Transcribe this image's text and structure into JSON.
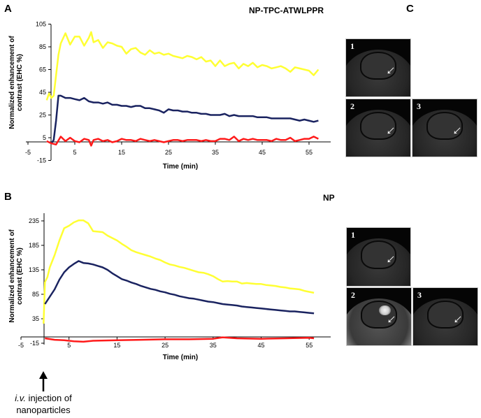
{
  "panels": {
    "a_label": "A",
    "b_label": "B",
    "c_label": "C",
    "a_condition": "NP-TPC-ATWLPPR",
    "b_condition": "NP"
  },
  "annotation": {
    "iv": "i.v.",
    "text1": " injection of",
    "text2": "nanoparticles"
  },
  "series_colors": {
    "yellow": "#ffff33",
    "navy": "#1a2360",
    "red": "#ff1a1a"
  },
  "mri_images": {
    "top": [
      "1",
      "2",
      "3"
    ],
    "bottom": [
      "1",
      "2",
      "3"
    ]
  },
  "chart_data": [
    {
      "type": "line",
      "title": "NP-TPC-ATWLPPR",
      "xlabel": "Time (min)",
      "ylabel": [
        "Normalized enhancement of",
        "contrast (EHC %)"
      ],
      "xticks": [
        "-5",
        "5",
        "15",
        "25",
        "35",
        "45",
        "55"
      ],
      "yticks": [
        "105",
        "85",
        "65",
        "45",
        "25",
        "5",
        "-15"
      ],
      "xlim": [
        -5,
        60
      ],
      "ylim": [
        -15,
        105
      ],
      "grid": false,
      "series": [
        {
          "color": "#ffff33",
          "x": [
            -1,
            -0.5,
            0,
            0.5,
            1,
            1.5,
            2,
            3,
            4,
            5,
            6,
            7,
            8,
            8.5,
            9,
            10,
            11,
            12,
            13,
            14,
            15,
            16,
            17,
            18,
            19,
            20,
            21,
            22,
            23,
            24,
            25,
            26,
            27,
            28,
            29,
            30,
            31,
            32,
            33,
            34,
            35,
            36,
            37,
            38,
            39,
            40,
            41,
            42,
            43,
            44,
            45,
            46,
            47,
            48,
            49,
            50,
            51,
            52,
            53,
            54,
            55,
            56,
            57
          ],
          "y": [
            38,
            44,
            40,
            42,
            60,
            78,
            88,
            97,
            87,
            94,
            94,
            86,
            93,
            98,
            89,
            91,
            84,
            89,
            88,
            86,
            85,
            79,
            83,
            84,
            80,
            78,
            82,
            79,
            80,
            78,
            79,
            77,
            76,
            75,
            77,
            76,
            74,
            76,
            72,
            73,
            68,
            73,
            68,
            70,
            71,
            66,
            70,
            68,
            71,
            67,
            69,
            68,
            66,
            67,
            68,
            66,
            63,
            67,
            66,
            65,
            64,
            60,
            65
          ]
        },
        {
          "color": "#1a2360",
          "x": [
            0,
            0.5,
            1,
            1.5,
            2,
            3,
            4,
            5,
            6,
            7,
            8,
            9,
            10,
            11,
            12,
            13,
            14,
            15,
            16,
            17,
            18,
            19,
            20,
            21,
            22,
            23,
            24,
            25,
            26,
            27,
            28,
            29,
            30,
            31,
            32,
            33,
            34,
            35,
            36,
            37,
            38,
            39,
            40,
            41,
            42,
            43,
            44,
            45,
            46,
            47,
            48,
            49,
            50,
            51,
            52,
            53,
            54,
            55,
            56,
            57
          ],
          "y": [
            0,
            3,
            20,
            42,
            42,
            40,
            40,
            39,
            38,
            40,
            37,
            36,
            36,
            35,
            36,
            34,
            34,
            33,
            33,
            32,
            33,
            33,
            31,
            31,
            30,
            29,
            27,
            30,
            29,
            29,
            28,
            28,
            27,
            27,
            26,
            26,
            25,
            25,
            25,
            26,
            24,
            25,
            24,
            24,
            24,
            24,
            23,
            23,
            23,
            22,
            22,
            22,
            22,
            22,
            21,
            20,
            21,
            20,
            19,
            20
          ]
        },
        {
          "color": "#ff1a1a",
          "x": [
            -1,
            0,
            1,
            2,
            3,
            4,
            5,
            6,
            7,
            8,
            8.5,
            9,
            10,
            11,
            12,
            13,
            14,
            15,
            16,
            17,
            18,
            19,
            20,
            21,
            22,
            23,
            24,
            25,
            26,
            27,
            28,
            29,
            30,
            31,
            32,
            33,
            34,
            35,
            36,
            37,
            38,
            39,
            40,
            41,
            42,
            43,
            44,
            45,
            46,
            47,
            48,
            49,
            50,
            51,
            52,
            53,
            54,
            55,
            56,
            57
          ],
          "y": [
            2,
            0,
            -1,
            6,
            2,
            5,
            2,
            1,
            4,
            3,
            -2,
            3,
            4,
            2,
            3,
            1,
            2,
            4,
            3,
            3,
            2,
            4,
            3,
            2,
            3,
            2,
            1,
            2,
            3,
            3,
            2,
            3,
            3,
            3,
            2,
            3,
            2,
            2,
            4,
            4,
            3,
            6,
            2,
            4,
            3,
            4,
            3,
            3,
            3,
            2,
            4,
            3,
            3,
            5,
            2,
            3,
            4,
            4,
            6,
            4
          ]
        }
      ]
    },
    {
      "type": "line",
      "title": "NP",
      "xlabel": "Time (min)",
      "ylabel": [
        "Normalized enhancement of",
        "contrast (EHC %)"
      ],
      "xticks": [
        "-5",
        "5",
        "15",
        "25",
        "35",
        "45",
        "55"
      ],
      "yticks": [
        "235",
        "185",
        "135",
        "85",
        "35",
        "-15"
      ],
      "xlim": [
        -5,
        60
      ],
      "ylim": [
        -15,
        250
      ],
      "grid": false,
      "series": [
        {
          "color": "#ffff33",
          "x": [
            -0.3,
            0,
            0.5,
            1,
            2,
            3,
            4,
            5,
            6,
            7,
            8,
            9,
            10,
            11,
            12,
            13,
            14,
            15,
            16,
            17,
            18,
            19,
            20,
            21,
            22,
            23,
            24,
            25,
            26,
            27,
            28,
            29,
            30,
            31,
            32,
            33,
            34,
            35,
            36,
            37,
            38,
            39,
            40,
            41,
            42,
            43,
            44,
            45,
            46,
            47,
            48,
            49,
            50,
            51,
            52,
            53,
            54,
            55,
            56
          ],
          "y": [
            25,
            110,
            120,
            140,
            165,
            195,
            220,
            225,
            232,
            236,
            236,
            230,
            214,
            213,
            212,
            205,
            200,
            195,
            188,
            182,
            175,
            171,
            168,
            165,
            162,
            158,
            155,
            150,
            146,
            144,
            141,
            139,
            136,
            133,
            130,
            129,
            126,
            122,
            116,
            111,
            112,
            111,
            111,
            107,
            108,
            107,
            106,
            106,
            104,
            103,
            102,
            100,
            99,
            97,
            96,
            95,
            92,
            90,
            88
          ]
        },
        {
          "color": "#1a2360",
          "x": [
            0,
            1,
            2,
            3,
            4,
            5,
            6,
            7,
            8,
            9,
            10,
            11,
            12,
            13,
            14,
            15,
            16,
            17,
            18,
            19,
            20,
            21,
            22,
            23,
            24,
            25,
            26,
            27,
            28,
            29,
            30,
            31,
            32,
            33,
            34,
            35,
            36,
            37,
            38,
            39,
            40,
            41,
            42,
            43,
            44,
            45,
            46,
            47,
            48,
            49,
            50,
            51,
            52,
            53,
            54,
            55,
            56
          ],
          "y": [
            65,
            80,
            95,
            115,
            130,
            140,
            147,
            153,
            149,
            148,
            146,
            143,
            140,
            135,
            128,
            122,
            116,
            113,
            109,
            106,
            102,
            99,
            96,
            94,
            91,
            89,
            86,
            84,
            81,
            79,
            77,
            76,
            74,
            72,
            70,
            69,
            67,
            65,
            64,
            63,
            62,
            60,
            59,
            58,
            57,
            56,
            55,
            54,
            53,
            52,
            51,
            50,
            50,
            49,
            48,
            47,
            46
          ]
        },
        {
          "color": "#ff1a1a",
          "x": [
            0,
            2,
            4,
            6,
            8,
            10,
            15,
            20,
            25,
            30,
            35,
            37,
            40,
            45,
            50,
            55,
            56
          ],
          "y": [
            -5,
            -8,
            -9,
            -11,
            -12,
            -10,
            -9,
            -8,
            -7,
            -7,
            -6,
            -3,
            -5,
            -6,
            -5,
            -4,
            -5
          ]
        }
      ]
    }
  ]
}
